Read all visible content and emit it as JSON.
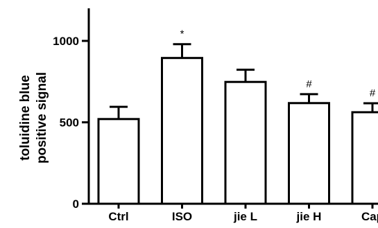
{
  "chart_data": {
    "type": "bar",
    "title": "",
    "ylabel_lines": [
      "toluidine blue",
      "positive signal"
    ],
    "xlabel": "",
    "categories": [
      "Ctrl",
      "ISO",
      "jie L",
      "jie H",
      "Cap"
    ],
    "values": [
      520,
      895,
      748,
      618,
      562
    ],
    "errors": [
      75,
      85,
      75,
      55,
      55
    ],
    "annotations": [
      "",
      "*",
      "",
      "#",
      "#"
    ],
    "ylim": [
      0,
      1200
    ],
    "yticks": [
      0,
      500,
      1000
    ],
    "ytick_labels": [
      "0",
      "500",
      "1000"
    ],
    "grid": false,
    "legend": "none",
    "bar_fill": "#ffffff",
    "bar_stroke": "#000000"
  }
}
